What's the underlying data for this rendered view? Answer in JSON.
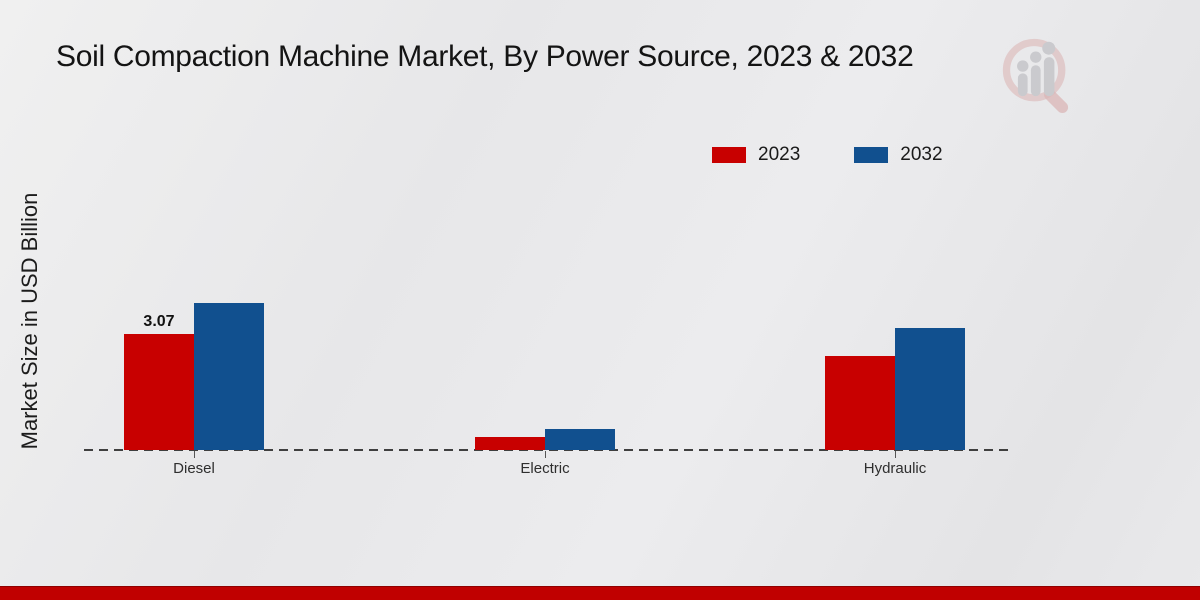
{
  "page": {
    "title": "Soil Compaction Machine Market, By Power Source, 2023 & 2032",
    "ylabel": "Market Size in USD Billion"
  },
  "legend": {
    "items": [
      {
        "label": "2023",
        "color": "#c80000"
      },
      {
        "label": "2032",
        "color": "#11508f"
      }
    ]
  },
  "chart_data": {
    "type": "bar",
    "title": "Soil Compaction Machine Market, By Power Source, 2023 & 2032",
    "xlabel": "",
    "ylabel": "Market Size in USD Billion",
    "categories": [
      "Diesel",
      "Electric",
      "Hydraulic"
    ],
    "series": [
      {
        "name": "2023",
        "color": "#c80000",
        "values": [
          3.07,
          0.34,
          2.49
        ]
      },
      {
        "name": "2032",
        "color": "#11508f",
        "values": [
          3.89,
          0.56,
          3.23
        ]
      }
    ],
    "data_labels": [
      {
        "series": "2023",
        "category": "Diesel",
        "text": "3.07"
      }
    ],
    "ylim": [
      0,
      4.2
    ],
    "grid": false,
    "axis_line": "dashed",
    "legend_position": "top-right"
  },
  "branding": {
    "logo_name": "magnifier-bar-chart-logo",
    "bottom_band_color": "#c00000",
    "logo_ring_color": "#dcb9b9",
    "logo_figure_color": "#c5c5c9"
  }
}
